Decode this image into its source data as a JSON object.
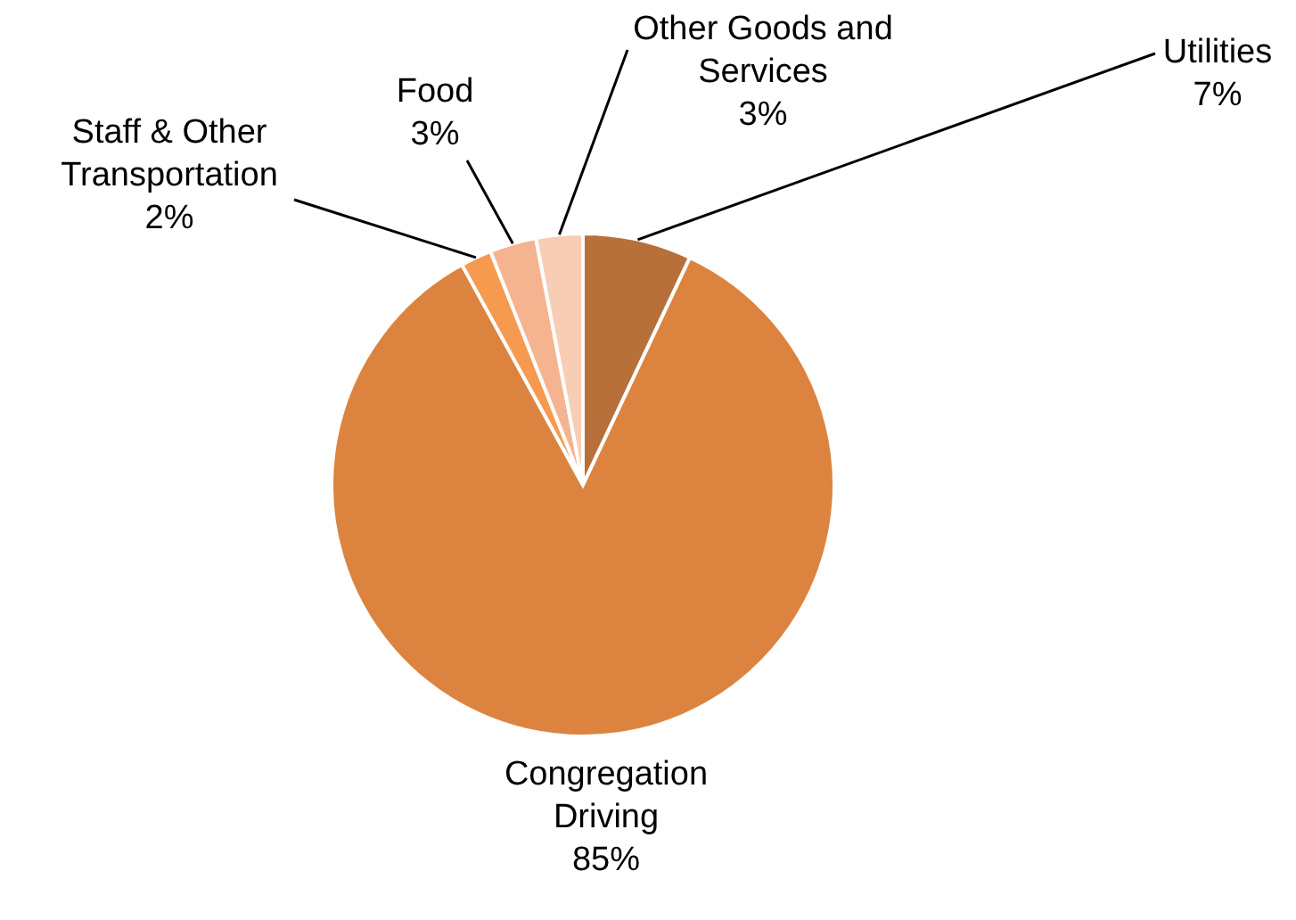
{
  "chart_data": {
    "type": "pie",
    "categories": [
      "Utilities",
      "Congregation Driving",
      "Staff & Other Transportation",
      "Food",
      "Other Goods and Services"
    ],
    "values": [
      7,
      85,
      2,
      3,
      3
    ],
    "value_labels": [
      "7%",
      "85%",
      "2%",
      "3%",
      "3%"
    ],
    "colors": [
      "#b8703a",
      "#dc843f",
      "#f59a4f",
      "#f5b48f",
      "#f8cdb5"
    ]
  }
}
